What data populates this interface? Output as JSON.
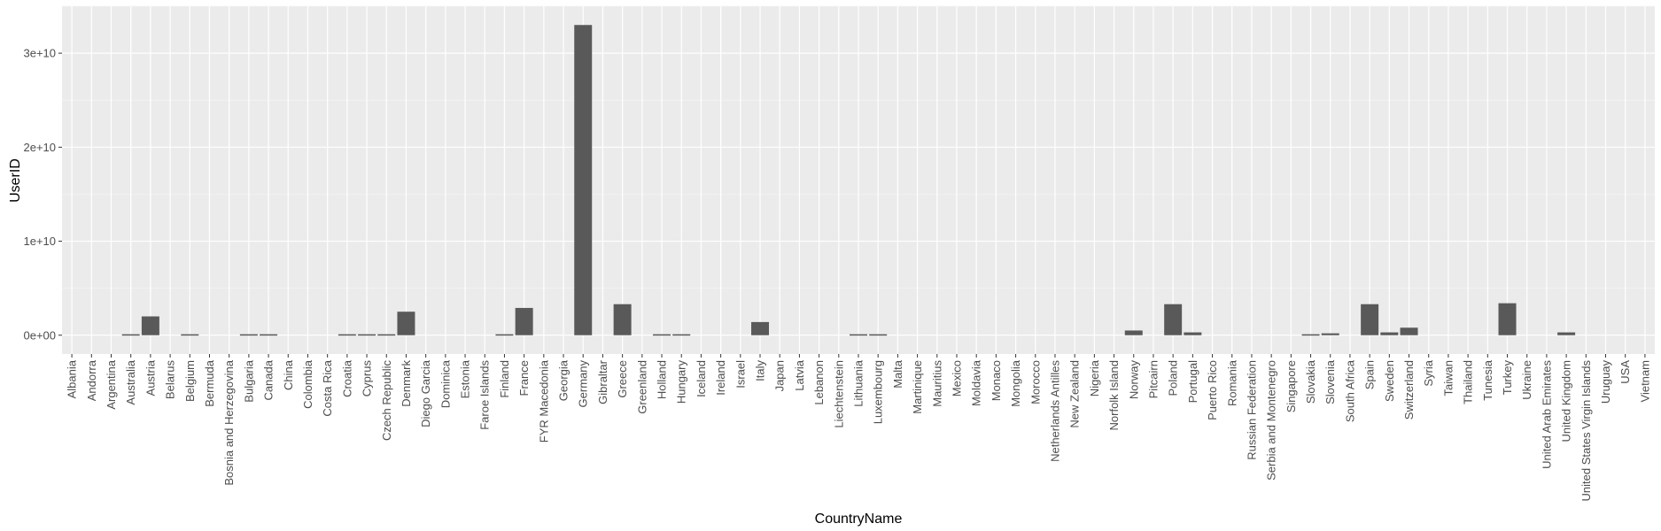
{
  "chart_data": {
    "type": "bar",
    "xlabel": "CountryName",
    "ylabel": "UserID",
    "ylim": [
      -2000000000,
      35000000000
    ],
    "yticks": [
      0,
      10000000000,
      20000000000,
      30000000000
    ],
    "ytick_labels": [
      "0e+00",
      "1e+10",
      "2e+10",
      "3e+10"
    ],
    "grid": true,
    "legend": "none",
    "colors": {
      "bar": "#595959",
      "panel": "#ebebeb",
      "grid_major": "#ffffff",
      "grid_minor": "#f5f5f5"
    },
    "categories": [
      "Albania",
      "Andorra",
      "Argentina",
      "Australia",
      "Austria",
      "Belarus",
      "Belgium",
      "Bermuda",
      "Bosnia and Herzegovina",
      "Bulgaria",
      "Canada",
      "China",
      "Colombia",
      "Costa Rica",
      "Croatia",
      "Cyprus",
      "Czech Republic",
      "Denmark",
      "Diego Garcia",
      "Dominica",
      "Estonia",
      "Faroe Islands",
      "Finland",
      "France",
      "FYR Macedonia",
      "Georgia",
      "Germany",
      "Gibraltar",
      "Greece",
      "Greenland",
      "Holland",
      "Hungary",
      "Iceland",
      "Ireland",
      "Israel",
      "Italy",
      "Japan",
      "Latvia",
      "Lebanon",
      "Liechtenstein",
      "Lithuania",
      "Luxembourg",
      "Malta",
      "Martinique",
      "Mauritius",
      "Mexico",
      "Moldavia",
      "Monaco",
      "Mongolia",
      "Morocco",
      "Netherlands Antilles",
      "New Zealand",
      "Nigeria",
      "Norfolk Island",
      "Norway",
      "Pitcairn",
      "Poland",
      "Portugal",
      "Puerto Rico",
      "Romania",
      "Russian Federation",
      "Serbia and Montenegro",
      "Singapore",
      "Slovakia",
      "Slovenia",
      "South Africa",
      "Spain",
      "Sweden",
      "Switzerland",
      "Syria",
      "Taiwan",
      "Thailand",
      "Tunesia",
      "Turkey",
      "Ukraine",
      "United Arab Emirates",
      "United Kingdom",
      "United States Virgin Islands",
      "Uruguay",
      "USA",
      "Vietnam"
    ],
    "values": [
      0,
      0,
      0,
      100000000,
      2000000000,
      0,
      100000000,
      0,
      0,
      100000000,
      100000000,
      0,
      0,
      0,
      100000000,
      100000000,
      100000000,
      2500000000,
      0,
      0,
      0,
      0,
      100000000,
      2900000000,
      0,
      0,
      33000000000,
      0,
      3300000000,
      0,
      100000000,
      100000000,
      0,
      0,
      0,
      1400000000,
      0,
      0,
      0,
      0,
      100000000,
      100000000,
      0,
      0,
      0,
      0,
      0,
      0,
      0,
      0,
      0,
      0,
      0,
      0,
      500000000,
      0,
      3300000000,
      300000000,
      0,
      0,
      0,
      0,
      0,
      100000000,
      200000000,
      0,
      3300000000,
      300000000,
      800000000,
      0,
      0,
      0,
      0,
      3400000000,
      0,
      0,
      300000000,
      0,
      0,
      0,
      0
    ]
  }
}
